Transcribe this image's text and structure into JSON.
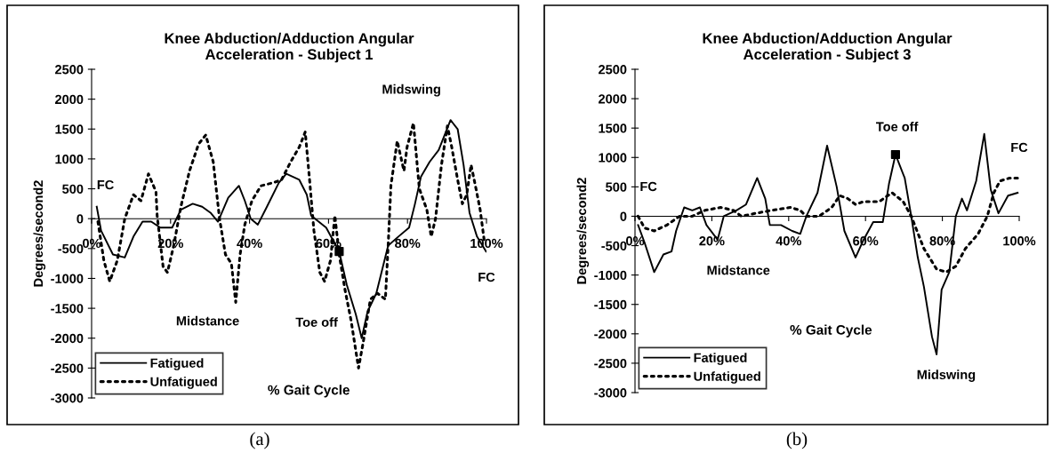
{
  "chart_data": [
    {
      "type": "line",
      "title": "Knee Abduction/Adduction Angular\nAcceleration - Subject 1",
      "xlabel": "% Gait Cycle",
      "ylabel": "Degrees/second2",
      "xlim": [
        0,
        100
      ],
      "ylim": [
        -3000,
        2500
      ],
      "xticks": [
        {
          "value": 0,
          "label": "0%"
        },
        {
          "value": 20,
          "label": "20%"
        },
        {
          "value": 40,
          "label": "40%"
        },
        {
          "value": 60,
          "label": "60%"
        },
        {
          "value": 80,
          "label": "80%"
        },
        {
          "value": 100,
          "label": "100%"
        }
      ],
      "yticks": [
        -3000,
        -2500,
        -2000,
        -1500,
        -1000,
        -500,
        0,
        500,
        1000,
        1500,
        2000,
        2500
      ],
      "legend": "bottom left",
      "grid": false,
      "series": [
        {
          "name": "Fatigued",
          "color": "#000000",
          "line_style": "solid",
          "x": [
            1.3,
            2.4,
            5.4,
            8.4,
            10.6,
            12.9,
            15.1,
            17.4,
            20.4,
            22.6,
            25.6,
            28,
            30.1,
            32,
            34.6,
            37.3,
            38.8,
            40.3,
            42.1,
            44.4,
            47.4,
            49.3,
            52.6,
            54.5,
            55.6,
            59.4,
            62.7,
            64.6,
            66.9,
            68.4,
            69.9,
            72.1,
            75.1,
            77.7,
            80.4,
            81.9,
            83.4,
            85.6,
            87.9,
            90.9,
            92.7,
            94.2,
            95.7,
            97.6,
            99.9
          ],
          "values": [
            200,
            -200,
            -600,
            -650,
            -300,
            -50,
            -50,
            -150,
            -150,
            150,
            250,
            200,
            100,
            -50,
            350,
            550,
            300,
            0,
            -100,
            200,
            600,
            750,
            650,
            400,
            50,
            -150,
            -550,
            -1100,
            -1600,
            -2000,
            -1550,
            -1250,
            -450,
            -300,
            -150,
            250,
            700,
            950,
            1150,
            1650,
            1500,
            900,
            100,
            -300,
            -550
          ]
        },
        {
          "name": "Unfatigued",
          "color": "#000000",
          "line_style": "dotted",
          "x": [
            1.6,
            3.1,
            4.6,
            6.5,
            8.4,
            10.6,
            12.5,
            14.4,
            16.3,
            16.6,
            18.1,
            19.2,
            20.8,
            22.6,
            24.8,
            27.1,
            28.9,
            30.8,
            32.4,
            33.9,
            35.4,
            36.5,
            37.6,
            38.8,
            40.6,
            42.9,
            45.9,
            48.1,
            50.4,
            52.6,
            54.1,
            55.2,
            56.3,
            57.8,
            59,
            60.5,
            61.6,
            62.7,
            64.2,
            65.7,
            67.6,
            68.7,
            70.6,
            72.4,
            74.4,
            75.1,
            75.8,
            77.4,
            79.1,
            79.9,
            81.5,
            83,
            84.9,
            86,
            87.1,
            88.6,
            90.1,
            91.2,
            92.7,
            93.9,
            95,
            96.1,
            97.2,
            98.4,
            99.5
          ],
          "values": [
            -50,
            -700,
            -1050,
            -700,
            0,
            400,
            300,
            750,
            450,
            50,
            -800,
            -900,
            -450,
            200,
            800,
            1250,
            1400,
            950,
            0,
            -600,
            -750,
            -1400,
            -600,
            -100,
            300,
            550,
            600,
            650,
            950,
            1200,
            1450,
            650,
            -200,
            -900,
            -1050,
            -700,
            50,
            -600,
            -1200,
            -1700,
            -2500,
            -2100,
            -1350,
            -1250,
            -1350,
            -450,
            550,
            1300,
            800,
            1200,
            1600,
            500,
            150,
            -300,
            0,
            900,
            1550,
            1200,
            650,
            250,
            400,
            900,
            550,
            150,
            -400
          ]
        },
        {
          "type": "scatter",
          "color": "#000000",
          "marker": "square",
          "x": [
            62.7
          ],
          "values": [
            -550
          ]
        }
      ],
      "annotations": [
        "FC",
        "Midstance",
        "Toe off",
        "Midswing",
        "FC",
        "(a)"
      ]
    },
    {
      "type": "line",
      "title": "Knee Abduction/Adduction Angular\nAcceleration - Subject 3",
      "xlabel": "% Gait Cycle",
      "ylabel": "Degrees/second2",
      "xlim": [
        0,
        100
      ],
      "ylim": [
        -3000,
        2500
      ],
      "xticks": [
        {
          "value": 0,
          "label": "0%"
        },
        {
          "value": 20,
          "label": "20%"
        },
        {
          "value": 40,
          "label": "40%"
        },
        {
          "value": 60,
          "label": "60%"
        },
        {
          "value": 80,
          "label": "80%"
        },
        {
          "value": 100,
          "label": "100%"
        }
      ],
      "yticks": [
        -3000,
        -2500,
        -2000,
        -1500,
        -1000,
        -500,
        0,
        500,
        1000,
        1500,
        2000,
        2500
      ],
      "legend": "bottom left",
      "grid": false,
      "series": [
        {
          "name": "Fatigued",
          "color": "#000000",
          "line_style": "solid",
          "x": [
            0.8,
            2.5,
            5,
            7.4,
            9.5,
            10.7,
            12.8,
            14.9,
            16.9,
            18.6,
            21.5,
            23.1,
            26.4,
            28.9,
            31.8,
            33.9,
            35.1,
            38,
            40.9,
            43,
            44.6,
            47.5,
            50,
            52.5,
            54.5,
            57.4,
            59.5,
            62,
            64.5,
            66.1,
            67.8,
            70.2,
            71.9,
            73.6,
            75.2,
            77.3,
            78.5,
            79.8,
            81.8,
            83.5,
            85.1,
            86.4,
            88.8,
            90.9,
            92.6,
            94.6,
            97.1,
            99.6
          ],
          "values": [
            -150,
            -450,
            -950,
            -650,
            -600,
            -250,
            150,
            100,
            150,
            -150,
            -400,
            0,
            100,
            200,
            650,
            300,
            -150,
            -150,
            -250,
            -300,
            0,
            400,
            1200,
            500,
            -250,
            -700,
            -400,
            -100,
            -100,
            550,
            1050,
            650,
            0,
            -700,
            -1200,
            -2050,
            -2350,
            -1250,
            -950,
            0,
            300,
            100,
            600,
            1400,
            450,
            50,
            350,
            400
          ]
        },
        {
          "name": "Unfatigued",
          "color": "#000000",
          "line_style": "dotted",
          "x": [
            0.8,
            2.5,
            5,
            8.3,
            11.6,
            14.9,
            18.2,
            22.3,
            25.6,
            27.7,
            31.4,
            35.5,
            40.5,
            43,
            44.6,
            47.9,
            51.2,
            53.3,
            55.4,
            57.4,
            59.5,
            63.6,
            66.9,
            69.8,
            71.9,
            75.2,
            78.5,
            81,
            83.5,
            86,
            89.3,
            91.7,
            93.4,
            95,
            97.5,
            99.6
          ],
          "values": [
            0,
            -200,
            -250,
            -150,
            0,
            0,
            100,
            150,
            100,
            0,
            50,
            100,
            150,
            100,
            0,
            0,
            150,
            350,
            300,
            200,
            250,
            250,
            400,
            250,
            0,
            -550,
            -900,
            -950,
            -850,
            -550,
            -300,
            0,
            400,
            600,
            650,
            650
          ]
        },
        {
          "type": "scatter",
          "color": "#000000",
          "marker": "square",
          "x": [
            67.8
          ],
          "values": [
            1050
          ]
        }
      ],
      "annotations": [
        "FC",
        "Midstance",
        "Toe off",
        "FC",
        "Midswing",
        "(b)"
      ]
    }
  ]
}
